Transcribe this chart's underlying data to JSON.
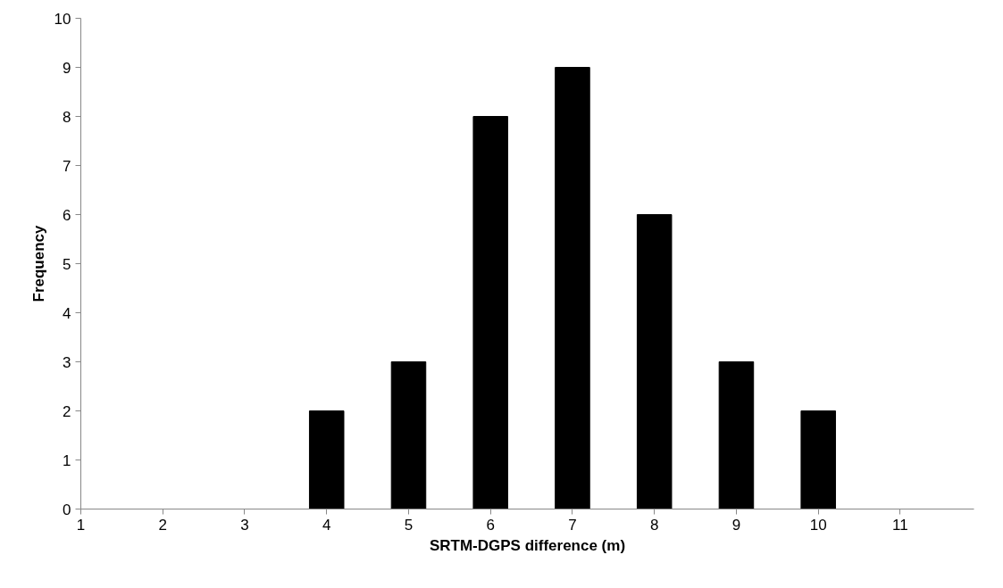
{
  "chart_data": {
    "type": "bar",
    "xlabel": "SRTM-DGPS difference (m)",
    "ylabel": "Frequency",
    "categories": [
      "1",
      "2",
      "3",
      "4",
      "5",
      "6",
      "7",
      "8",
      "9",
      "10",
      "11"
    ],
    "values": [
      0,
      0,
      0,
      2,
      3,
      8,
      9,
      6,
      3,
      2,
      0
    ],
    "color": "#000000",
    "ylim": [
      0,
      10
    ],
    "yticks": [
      0,
      1,
      2,
      3,
      4,
      5,
      6,
      7,
      8,
      9,
      10
    ],
    "grid": false
  }
}
